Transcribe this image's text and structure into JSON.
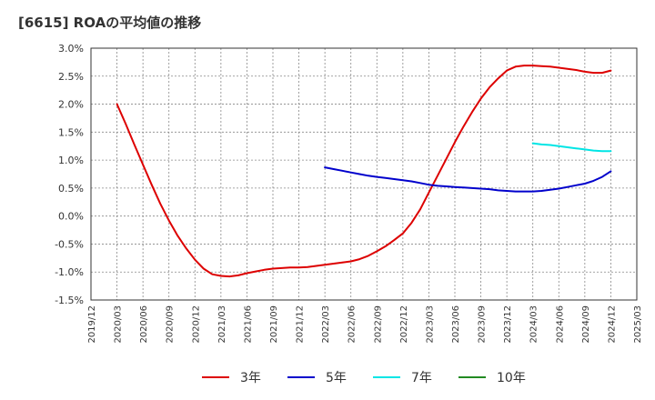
{
  "chart_data": {
    "type": "line",
    "title": "[6615]  ROAの平均値の推移",
    "xlabel": "",
    "ylabel": "",
    "ylim": [
      -1.5,
      3.0
    ],
    "grid": true,
    "legend_position": "bottom",
    "x_ticks": [
      "2019/12",
      "2020/03",
      "2020/06",
      "2020/09",
      "2020/12",
      "2021/03",
      "2021/06",
      "2021/09",
      "2021/12",
      "2022/03",
      "2022/06",
      "2022/09",
      "2022/12",
      "2023/03",
      "2023/06",
      "2023/09",
      "2023/12",
      "2024/03",
      "2024/06",
      "2024/09",
      "2024/12",
      "2025/03"
    ],
    "y_ticks": [
      "3.0%",
      "2.5%",
      "2.0%",
      "1.5%",
      "1.0%",
      "0.5%",
      "0.0%",
      "-0.5%",
      "-1.0%",
      "-1.5%"
    ],
    "series": [
      {
        "name": "3年",
        "color": "#dd0000",
        "x": [
          "2020/03",
          "2020/04",
          "2020/05",
          "2020/06",
          "2020/07",
          "2020/08",
          "2020/09",
          "2020/10",
          "2020/11",
          "2020/12",
          "2021/01",
          "2021/02",
          "2021/03",
          "2021/04",
          "2021/05",
          "2021/06",
          "2021/07",
          "2021/08",
          "2021/09",
          "2021/10",
          "2021/11",
          "2021/12",
          "2022/01",
          "2022/02",
          "2022/03",
          "2022/04",
          "2022/05",
          "2022/06",
          "2022/07",
          "2022/08",
          "2022/09",
          "2022/10",
          "2022/11",
          "2022/12",
          "2023/01",
          "2023/02",
          "2023/03",
          "2023/04",
          "2023/05",
          "2023/06",
          "2023/07",
          "2023/08",
          "2023/09",
          "2023/10",
          "2023/11",
          "2023/12",
          "2024/01",
          "2024/02",
          "2024/03",
          "2024/04",
          "2024/05",
          "2024/06",
          "2024/07",
          "2024/08",
          "2024/09",
          "2024/10",
          "2024/11",
          "2024/12"
        ],
        "values": [
          2.0,
          1.65,
          1.28,
          0.92,
          0.56,
          0.22,
          -0.08,
          -0.35,
          -0.58,
          -0.78,
          -0.94,
          -1.04,
          -1.07,
          -1.08,
          -1.06,
          -1.02,
          -0.99,
          -0.96,
          -0.94,
          -0.93,
          -0.92,
          -0.92,
          -0.91,
          -0.89,
          -0.87,
          -0.85,
          -0.83,
          -0.81,
          -0.77,
          -0.71,
          -0.63,
          -0.54,
          -0.43,
          -0.31,
          -0.12,
          0.12,
          0.42,
          0.72,
          1.02,
          1.32,
          1.6,
          1.86,
          2.1,
          2.3,
          2.46,
          2.6,
          2.67,
          2.69,
          2.69,
          2.68,
          2.67,
          2.65,
          2.63,
          2.61,
          2.58,
          2.56,
          2.56,
          2.6
        ]
      },
      {
        "name": "5年",
        "color": "#0000cc",
        "x": [
          "2022/03",
          "2022/04",
          "2022/05",
          "2022/06",
          "2022/07",
          "2022/08",
          "2022/09",
          "2022/10",
          "2022/11",
          "2022/12",
          "2023/01",
          "2023/02",
          "2023/03",
          "2023/04",
          "2023/05",
          "2023/06",
          "2023/07",
          "2023/08",
          "2023/09",
          "2023/10",
          "2023/11",
          "2023/12",
          "2024/01",
          "2024/02",
          "2024/03",
          "2024/04",
          "2024/05",
          "2024/06",
          "2024/07",
          "2024/08",
          "2024/09",
          "2024/10",
          "2024/11",
          "2024/12"
        ],
        "values": [
          0.87,
          0.84,
          0.81,
          0.78,
          0.75,
          0.72,
          0.7,
          0.68,
          0.66,
          0.64,
          0.62,
          0.59,
          0.56,
          0.54,
          0.53,
          0.52,
          0.51,
          0.5,
          0.49,
          0.48,
          0.46,
          0.45,
          0.44,
          0.44,
          0.44,
          0.45,
          0.47,
          0.49,
          0.52,
          0.55,
          0.58,
          0.63,
          0.7,
          0.8
        ]
      },
      {
        "name": "7年",
        "color": "#00e5e5",
        "x": [
          "2024/03",
          "2024/04",
          "2024/05",
          "2024/06",
          "2024/07",
          "2024/08",
          "2024/09",
          "2024/10",
          "2024/11",
          "2024/12"
        ],
        "values": [
          1.3,
          1.28,
          1.27,
          1.25,
          1.23,
          1.21,
          1.19,
          1.17,
          1.16,
          1.16
        ]
      },
      {
        "name": "10年",
        "color": "#228b22",
        "x": [],
        "values": []
      }
    ]
  }
}
